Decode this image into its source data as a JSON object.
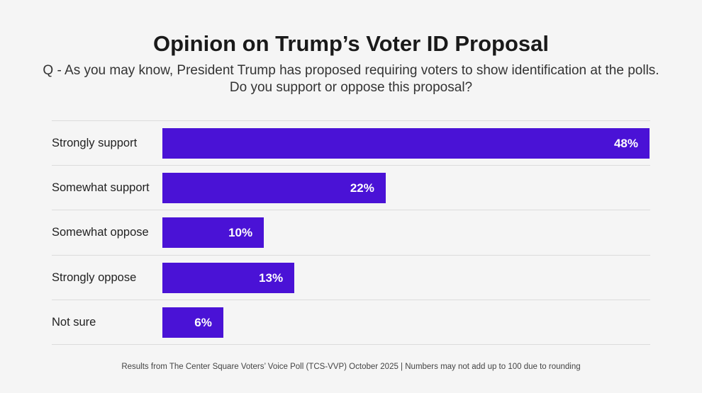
{
  "chart_data": {
    "type": "bar",
    "orientation": "horizontal",
    "title": "Opinion on Trump’s Voter ID Proposal",
    "subtitle_lines": [
      "Q - As you may know, President Trump has proposed requiring voters to show identification at the polls.",
      "Do you support or oppose this proposal?"
    ],
    "categories": [
      "Strongly support",
      "Somewhat support",
      "Somewhat oppose",
      "Strongly oppose",
      "Not sure"
    ],
    "values": [
      48,
      22,
      10,
      13,
      6
    ],
    "value_labels": [
      "48%",
      "22%",
      "10%",
      "13%",
      "6%"
    ],
    "xlim": [
      0,
      48
    ],
    "grid": false,
    "bar_color": "#4a12d6",
    "footnote": "Results from The Center Square Voters’ Voice Poll (TCS-VVP) October 2025 | Numbers may not add up to 100 due to rounding"
  }
}
